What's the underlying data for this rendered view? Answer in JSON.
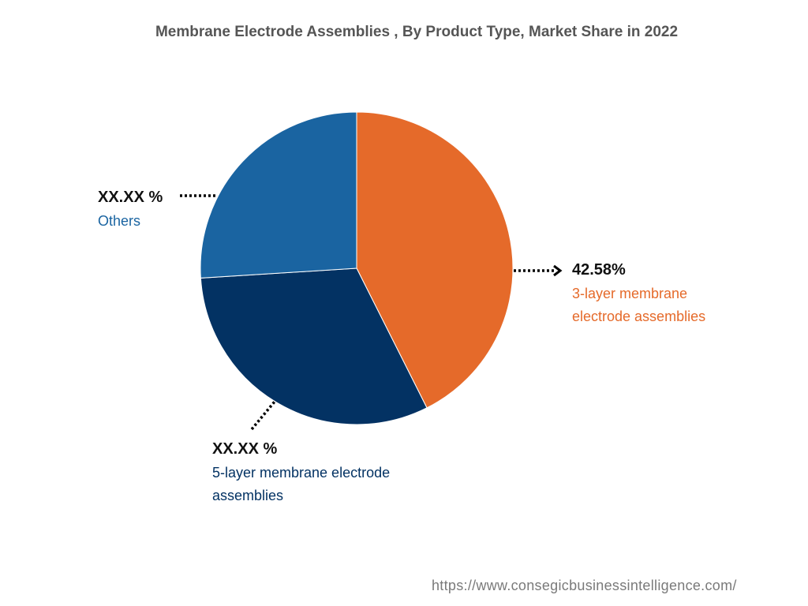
{
  "chart_data": {
    "type": "pie",
    "title": "Membrane Electrode Assemblies , By Product Type, Market Share in 2022",
    "slices": [
      {
        "name": "3-layer membrane electrode assemblies",
        "value": 42.58,
        "label": "42.58%",
        "color": "#e56a2a"
      },
      {
        "name": "5-layer membrane electrode assemblies",
        "value": 31.42,
        "label": "XX.XX %",
        "color": "#033263"
      },
      {
        "name": "Others",
        "value": 26.0,
        "label": "XX.XX %",
        "color": "#1a64a1"
      }
    ]
  },
  "source": "https://www.consegicbusinessintelligence.com/"
}
